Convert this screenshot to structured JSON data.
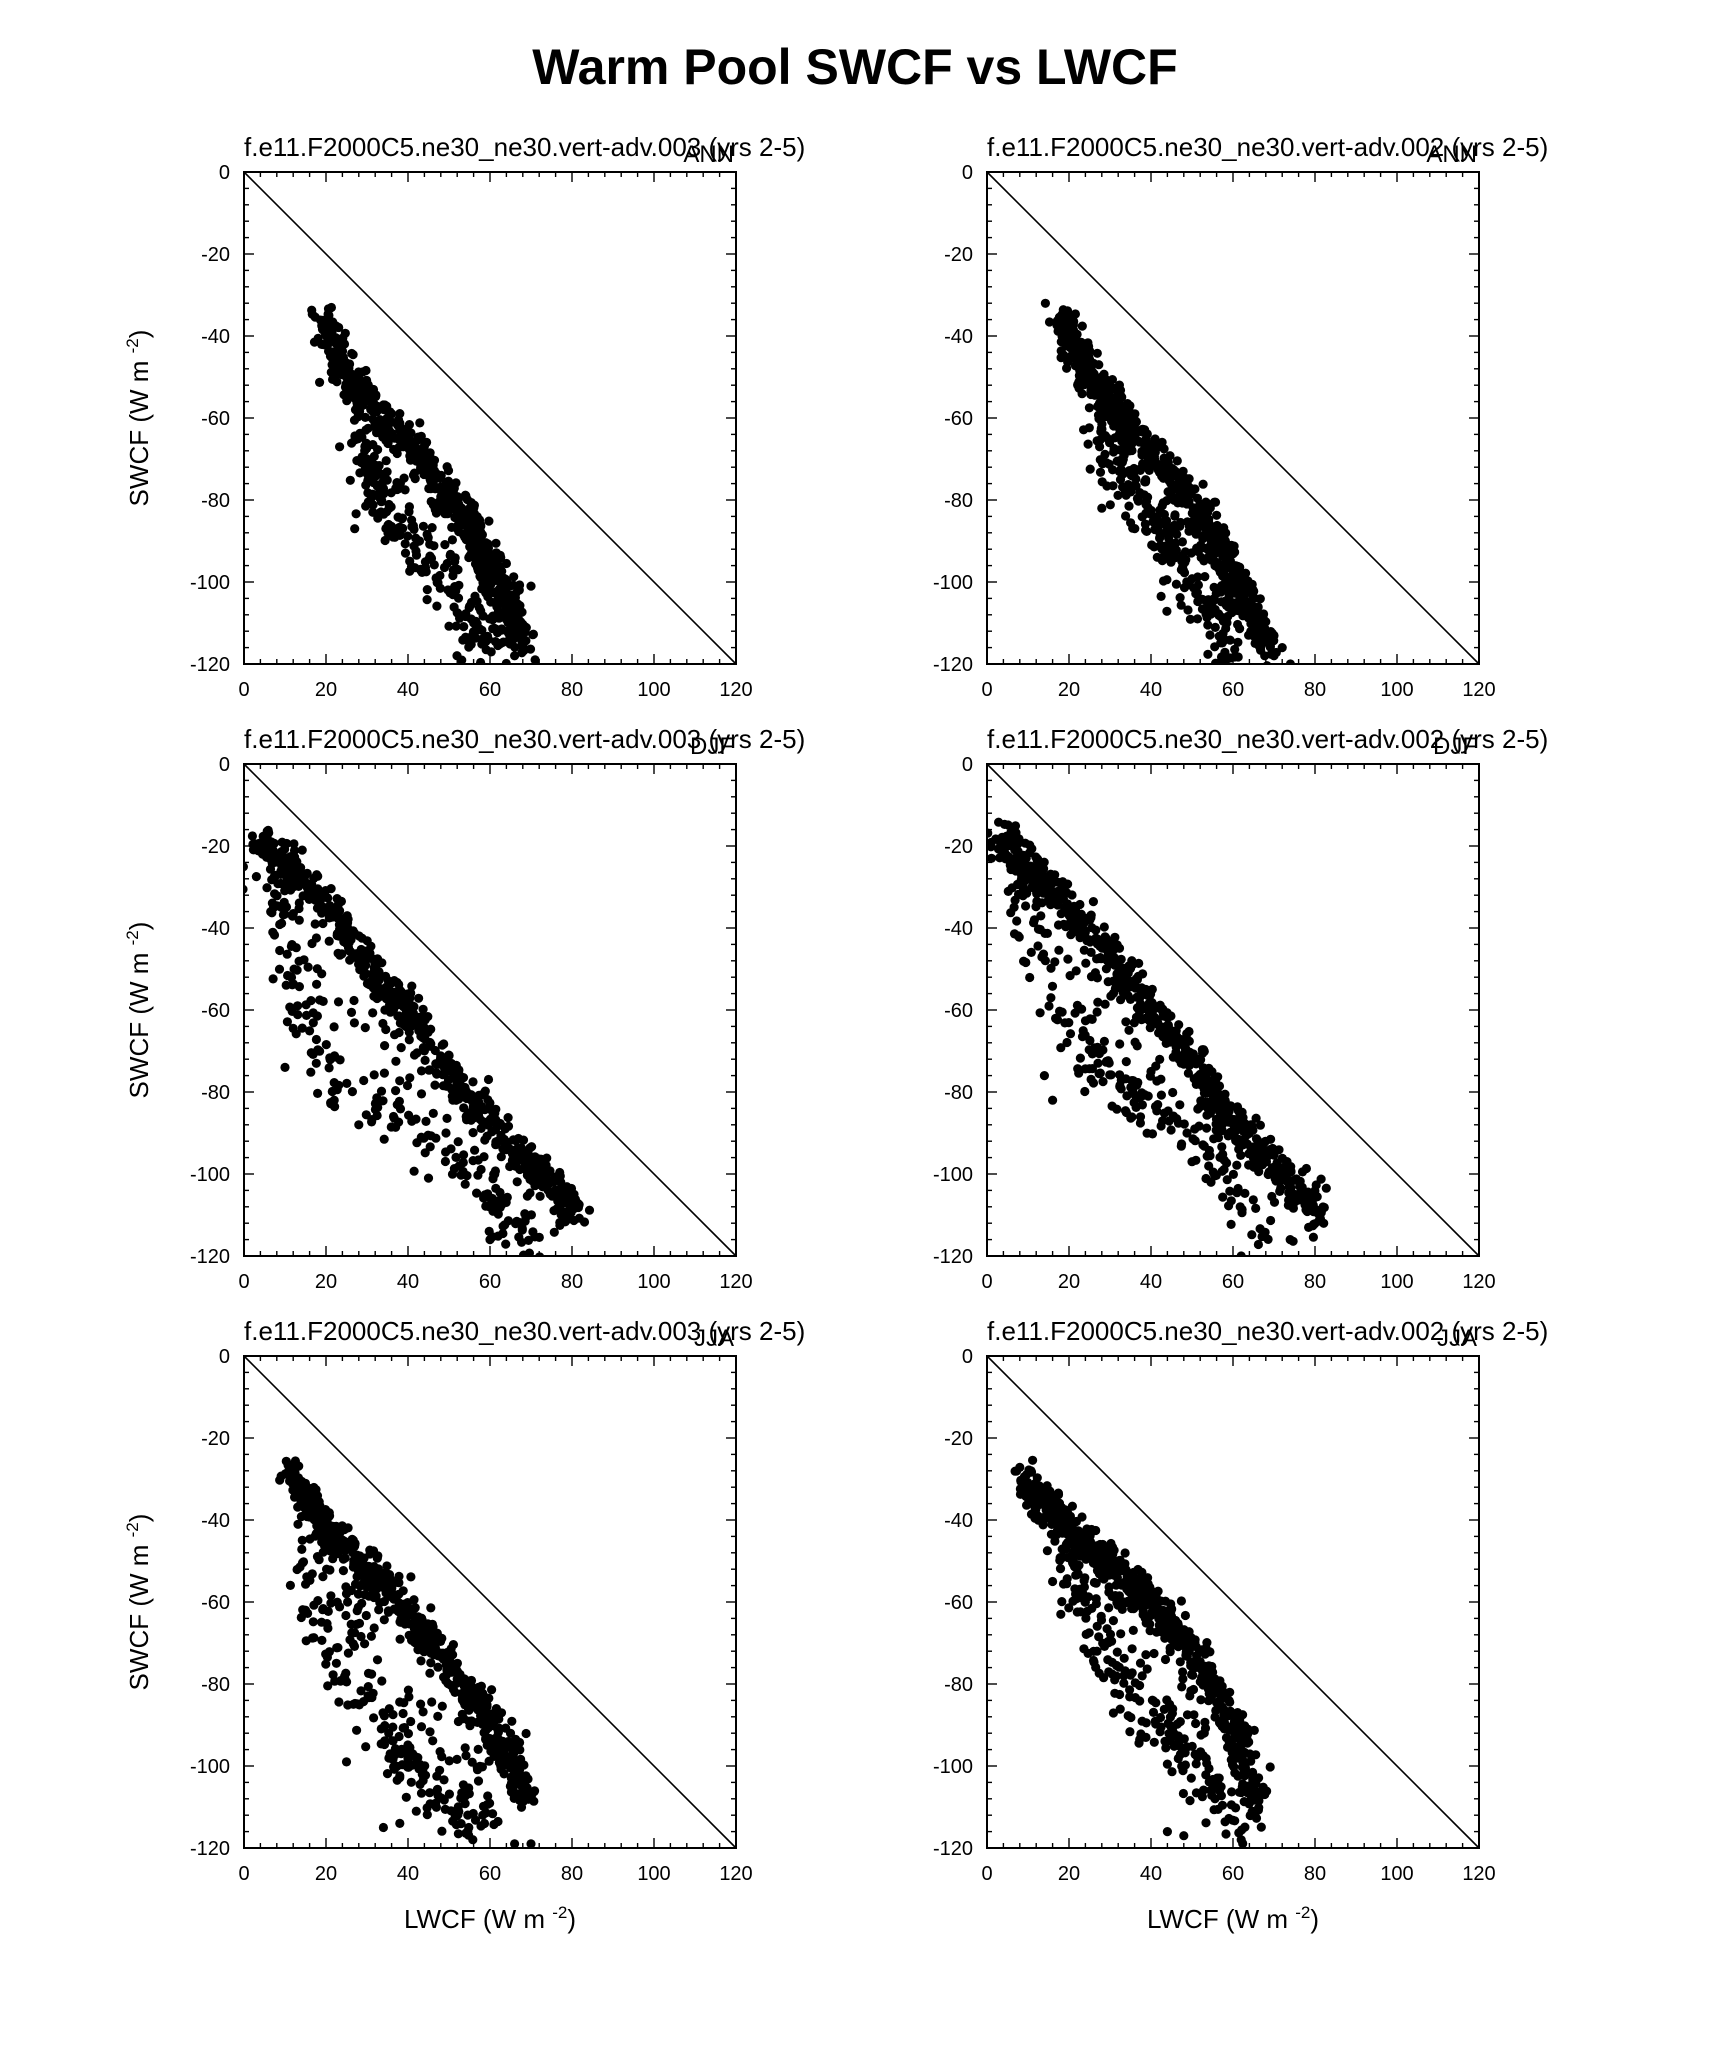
{
  "figure": {
    "title": "Warm Pool SWCF vs LWCF",
    "xlabel": "LWCF (W m",
    "ylabel": "SWCF (W m",
    "unit_exponent": "-2",
    "unit_close": ")"
  },
  "axis": {
    "xlim": [
      0,
      120
    ],
    "ylim": [
      -120,
      0
    ],
    "xticks": [
      0,
      20,
      40,
      60,
      80,
      100,
      120
    ],
    "yticks": [
      0,
      -20,
      -40,
      -60,
      -80,
      -100,
      -120
    ],
    "grid": false,
    "reference_line": "y = -x"
  },
  "chart_data": [
    {
      "type": "scatter",
      "case": "f.e11.F2000C5.ne30_ne30.vert-adv.003",
      "years": "(yrs 2-5)",
      "season": "ANN",
      "point_cloud": {
        "spine": [
          [
            19,
            -36
          ],
          [
            22,
            -42
          ],
          [
            26,
            -50
          ],
          [
            30,
            -56
          ],
          [
            36,
            -62
          ],
          [
            42,
            -68
          ],
          [
            48,
            -76
          ],
          [
            54,
            -84
          ],
          [
            58,
            -92
          ],
          [
            62,
            -100
          ],
          [
            65,
            -108
          ],
          [
            68,
            -114
          ]
        ],
        "tail": [
          [
            28,
            -66
          ],
          [
            30,
            -74
          ],
          [
            34,
            -82
          ],
          [
            40,
            -90
          ],
          [
            46,
            -98
          ],
          [
            52,
            -106
          ],
          [
            56,
            -112
          ],
          [
            60,
            -116
          ]
        ],
        "outliers": [
          [
            27,
            -87
          ],
          [
            30,
            -70
          ],
          [
            70,
            -101
          ],
          [
            71,
            -119
          ],
          [
            66,
            -118
          ]
        ]
      }
    },
    {
      "type": "scatter",
      "case": "f.e11.F2000C5.ne30_ne30.vert-adv.002",
      "years": "(yrs 2-5)",
      "season": "ANN",
      "point_cloud": {
        "spine": [
          [
            18,
            -35
          ],
          [
            21,
            -42
          ],
          [
            25,
            -50
          ],
          [
            30,
            -57
          ],
          [
            35,
            -63
          ],
          [
            41,
            -69
          ],
          [
            47,
            -76
          ],
          [
            53,
            -84
          ],
          [
            57,
            -92
          ],
          [
            61,
            -100
          ],
          [
            65,
            -108
          ],
          [
            69,
            -116
          ]
        ],
        "tail": [
          [
            28,
            -66
          ],
          [
            32,
            -72
          ],
          [
            36,
            -80
          ],
          [
            42,
            -88
          ],
          [
            46,
            -96
          ],
          [
            52,
            -104
          ],
          [
            56,
            -112
          ],
          [
            60,
            -118
          ]
        ],
        "outliers": [
          [
            28,
            -82
          ],
          [
            70,
            -118
          ],
          [
            72,
            -116
          ],
          [
            74,
            -120
          ]
        ]
      }
    },
    {
      "type": "scatter",
      "case": "f.e11.F2000C5.ne30_ne30.vert-adv.003",
      "years": "(yrs 2-5)",
      "season": "DJF",
      "point_cloud": {
        "spine": [
          [
            4,
            -19
          ],
          [
            8,
            -22
          ],
          [
            12,
            -26
          ],
          [
            18,
            -32
          ],
          [
            24,
            -40
          ],
          [
            30,
            -48
          ],
          [
            36,
            -56
          ],
          [
            42,
            -64
          ],
          [
            48,
            -72
          ],
          [
            54,
            -80
          ],
          [
            60,
            -86
          ],
          [
            66,
            -94
          ],
          [
            72,
            -100
          ],
          [
            78,
            -106
          ],
          [
            81,
            -110
          ]
        ],
        "tail": [
          [
            6,
            -26
          ],
          [
            8,
            -36
          ],
          [
            10,
            -46
          ],
          [
            12,
            -56
          ],
          [
            14,
            -64
          ],
          [
            18,
            -72
          ],
          [
            24,
            -78
          ],
          [
            30,
            -84
          ],
          [
            38,
            -88
          ],
          [
            46,
            -92
          ],
          [
            54,
            -100
          ],
          [
            60,
            -108
          ],
          [
            66,
            -114
          ],
          [
            70,
            -118
          ]
        ],
        "outliers": [
          [
            10,
            -74
          ],
          [
            22,
            -82
          ],
          [
            28,
            -88
          ],
          [
            45,
            -101
          ],
          [
            60,
            -116
          ]
        ]
      }
    },
    {
      "type": "scatter",
      "case": "f.e11.F2000C5.ne30_ne30.vert-adv.002",
      "years": "(yrs 2-5)",
      "season": "DJF",
      "point_cloud": {
        "spine": [
          [
            3,
            -18
          ],
          [
            7,
            -22
          ],
          [
            12,
            -27
          ],
          [
            18,
            -33
          ],
          [
            24,
            -40
          ],
          [
            30,
            -47
          ],
          [
            36,
            -54
          ],
          [
            42,
            -62
          ],
          [
            48,
            -70
          ],
          [
            54,
            -78
          ],
          [
            60,
            -86
          ],
          [
            66,
            -94
          ],
          [
            72,
            -100
          ],
          [
            78,
            -106
          ],
          [
            81,
            -110
          ]
        ],
        "tail": [
          [
            6,
            -26
          ],
          [
            8,
            -34
          ],
          [
            12,
            -44
          ],
          [
            16,
            -56
          ],
          [
            20,
            -66
          ],
          [
            26,
            -72
          ],
          [
            32,
            -78
          ],
          [
            38,
            -84
          ],
          [
            44,
            -88
          ],
          [
            52,
            -94
          ],
          [
            58,
            -102
          ],
          [
            64,
            -110
          ],
          [
            70,
            -116
          ]
        ],
        "outliers": [
          [
            14,
            -76
          ],
          [
            16,
            -82
          ],
          [
            40,
            -75
          ],
          [
            34,
            -85
          ],
          [
            50,
            -97
          ],
          [
            62,
            -120
          ]
        ]
      }
    },
    {
      "type": "scatter",
      "case": "f.e11.F2000C5.ne30_ne30.vert-adv.003",
      "years": "(yrs 2-5)",
      "season": "JJA",
      "point_cloud": {
        "spine": [
          [
            11,
            -28
          ],
          [
            15,
            -35
          ],
          [
            20,
            -42
          ],
          [
            26,
            -48
          ],
          [
            32,
            -54
          ],
          [
            38,
            -60
          ],
          [
            44,
            -68
          ],
          [
            50,
            -76
          ],
          [
            56,
            -84
          ],
          [
            62,
            -92
          ],
          [
            66,
            -100
          ],
          [
            69,
            -108
          ]
        ],
        "tail": [
          [
            14,
            -50
          ],
          [
            18,
            -64
          ],
          [
            22,
            -74
          ],
          [
            28,
            -84
          ],
          [
            34,
            -92
          ],
          [
            40,
            -100
          ],
          [
            46,
            -106
          ],
          [
            52,
            -112
          ],
          [
            58,
            -118
          ]
        ],
        "outliers": [
          [
            15,
            -62
          ],
          [
            25,
            -58
          ],
          [
            25,
            -99
          ],
          [
            34,
            -115
          ],
          [
            38,
            -114
          ],
          [
            66,
            -119
          ],
          [
            70,
            -119
          ]
        ]
      }
    },
    {
      "type": "scatter",
      "case": "f.e11.F2000C5.ne30_ne30.vert-adv.002",
      "years": "(yrs 2-5)",
      "season": "JJA",
      "point_cloud": {
        "spine": [
          [
            9,
            -30
          ],
          [
            14,
            -36
          ],
          [
            20,
            -42
          ],
          [
            26,
            -48
          ],
          [
            32,
            -53
          ],
          [
            38,
            -58
          ],
          [
            44,
            -64
          ],
          [
            50,
            -72
          ],
          [
            55,
            -80
          ],
          [
            60,
            -90
          ],
          [
            63,
            -100
          ],
          [
            66,
            -110
          ]
        ],
        "tail": [
          [
            18,
            -48
          ],
          [
            22,
            -58
          ],
          [
            26,
            -66
          ],
          [
            30,
            -74
          ],
          [
            34,
            -82
          ],
          [
            38,
            -88
          ],
          [
            44,
            -94
          ],
          [
            50,
            -100
          ],
          [
            56,
            -108
          ],
          [
            60,
            -116
          ]
        ],
        "outliers": [
          [
            16,
            -55
          ],
          [
            18,
            -63
          ],
          [
            44,
            -116
          ],
          [
            48,
            -117
          ],
          [
            62,
            -118
          ]
        ]
      }
    }
  ]
}
